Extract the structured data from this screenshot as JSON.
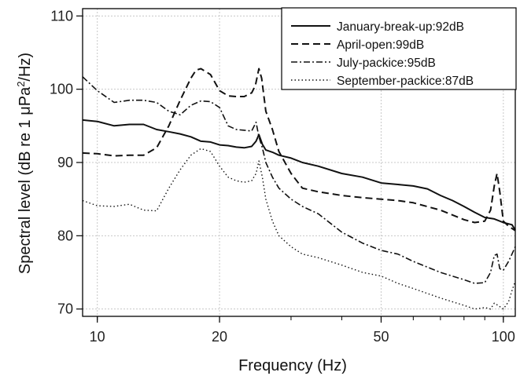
{
  "chart_data": {
    "type": "line",
    "xlabel": "Frequency (Hz)",
    "ylabel": "Spectral level (dB re 1 μPa²/Hz)",
    "ylabel_parts": [
      "Spectral level (dB re 1 μPa",
      "2",
      "/Hz)"
    ],
    "x_scale": "log",
    "xlim": [
      9.2,
      107
    ],
    "ylim": [
      69,
      111
    ],
    "x_ticks": [
      10,
      20,
      50,
      100
    ],
    "x_tick_labels": [
      "10",
      "20",
      "50",
      "100"
    ],
    "y_ticks": [
      70,
      80,
      90,
      100,
      110
    ],
    "y_tick_labels": [
      "70",
      "80",
      "90",
      "100",
      "110"
    ],
    "grid": true,
    "legend_position": "top-right",
    "series": [
      {
        "name": "January-break-up:92dB",
        "style": "solid",
        "x": [
          9.2,
          10,
          11,
          12,
          13,
          14,
          15,
          16,
          17,
          18,
          19,
          20,
          21,
          22,
          23,
          24,
          24.6,
          25,
          25.5,
          26,
          27,
          28,
          30,
          32,
          35,
          40,
          45,
          50,
          55,
          60,
          65,
          70,
          75,
          80,
          85,
          90,
          95,
          100,
          105,
          107
        ],
        "values": [
          95.8,
          95.6,
          95.0,
          95.2,
          95.2,
          94.5,
          94.2,
          93.9,
          93.5,
          92.9,
          92.8,
          92.4,
          92.3,
          92.1,
          92.0,
          92.2,
          92.9,
          93.8,
          92.5,
          91.7,
          91.4,
          91.0,
          90.6,
          90.0,
          89.5,
          88.5,
          88.0,
          87.2,
          87.0,
          86.8,
          86.4,
          85.5,
          84.8,
          84.0,
          83.2,
          82.5,
          82.3,
          81.8,
          81.5,
          80.8
        ]
      },
      {
        "name": "April-open:99dB",
        "style": "dashed",
        "x": [
          9.2,
          10,
          11,
          12,
          13,
          14,
          15,
          16,
          17,
          17.5,
          18,
          19,
          20,
          21,
          22,
          23,
          24,
          24.5,
          25,
          25.4,
          26,
          27,
          28,
          30,
          32,
          35,
          40,
          45,
          50,
          55,
          60,
          70,
          80,
          85,
          90,
          93,
          95,
          96.5,
          98,
          100,
          103,
          105,
          107
        ],
        "values": [
          91.3,
          91.2,
          90.9,
          91.0,
          91.0,
          92.0,
          95.0,
          98.5,
          101.5,
          102.6,
          102.8,
          102.0,
          99.8,
          99.1,
          99.0,
          99.0,
          99.5,
          100.5,
          102.8,
          101.5,
          97.0,
          94.5,
          91.5,
          88.5,
          86.5,
          86.0,
          85.5,
          85.2,
          85.0,
          84.8,
          84.5,
          83.5,
          82.2,
          81.8,
          82.0,
          83.5,
          86.8,
          88.5,
          86.0,
          82.0,
          81.3,
          81.0,
          80.7
        ]
      },
      {
        "name": "July-packice:95dB",
        "style": "dashdot",
        "x": [
          9.2,
          10,
          11,
          12,
          13,
          14,
          15,
          16,
          17,
          18,
          19,
          20,
          21,
          22,
          23,
          24,
          24.6,
          25,
          25.5,
          26,
          27,
          28,
          30,
          32,
          35,
          40,
          45,
          50,
          55,
          60,
          70,
          80,
          85,
          90,
          93,
          95,
          96.5,
          98,
          100,
          103,
          105,
          107
        ],
        "values": [
          101.7,
          99.8,
          98.2,
          98.5,
          98.5,
          98.2,
          97.0,
          96.5,
          97.8,
          98.4,
          98.3,
          97.5,
          95.0,
          94.5,
          94.4,
          94.3,
          95.5,
          93.5,
          92.0,
          90.0,
          88.0,
          86.5,
          85.0,
          84.0,
          83.0,
          80.5,
          79.0,
          78.0,
          77.5,
          76.5,
          75.0,
          74.0,
          73.5,
          73.6,
          75.0,
          77.3,
          77.5,
          75.5,
          75.3,
          76.5,
          77.5,
          78.5
        ]
      },
      {
        "name": "September-packice:87dB",
        "style": "dotted",
        "x": [
          9.2,
          10,
          11,
          12,
          13,
          14,
          15,
          16,
          17,
          18,
          19,
          20,
          21,
          22,
          23,
          24,
          24.6,
          25,
          25.5,
          26,
          27,
          28,
          30,
          32,
          35,
          40,
          45,
          50,
          55,
          60,
          70,
          80,
          85,
          90,
          93,
          95,
          97,
          100,
          103,
          105,
          107
        ],
        "values": [
          84.8,
          84.1,
          84.0,
          84.3,
          83.5,
          83.4,
          86.5,
          89.0,
          91.0,
          91.9,
          91.5,
          89.5,
          88.0,
          87.5,
          87.3,
          87.5,
          88.5,
          90.2,
          88.0,
          85.0,
          82.0,
          80.0,
          78.5,
          77.5,
          77.0,
          76.0,
          75.0,
          74.5,
          73.5,
          72.8,
          71.5,
          70.5,
          70.0,
          70.2,
          70.0,
          70.8,
          70.5,
          70.0,
          71.0,
          72.5,
          73.8
        ]
      }
    ]
  }
}
